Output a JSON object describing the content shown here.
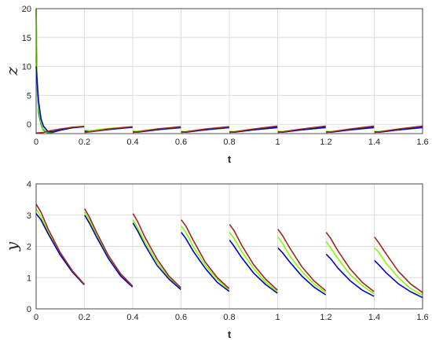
{
  "chart_data": [
    {
      "type": "line",
      "title": "",
      "xlabel": "t",
      "ylabel": "z",
      "xlim": [
        0,
        1.6
      ],
      "ylim": [
        -1.6,
        20
      ],
      "xticks": [
        "0",
        "0.2",
        "0.4",
        "0.6",
        "0.8",
        "1",
        "1.2",
        "1.4",
        "1.6"
      ],
      "yticks": [
        "0",
        "5",
        "10",
        "15",
        "20"
      ],
      "grid": true,
      "legend": "none",
      "series": [
        {
          "color": "#1a9e1a",
          "x": [
            0,
            0.005,
            0.01,
            0.02,
            0.03,
            0.05,
            0.07,
            0.1,
            0.15,
            0.199,
            0.201,
            0.22,
            0.3,
            0.399,
            0.401,
            0.42,
            0.5,
            0.599,
            0.601,
            0.62,
            0.7,
            0.799,
            0.801,
            0.82,
            0.9,
            0.999,
            1.001,
            1.02,
            1.1,
            1.199,
            1.201,
            1.22,
            1.3,
            1.399,
            1.401,
            1.42,
            1.5,
            1.6
          ],
          "y": [
            20,
            6,
            2,
            0,
            -1,
            -1.5,
            -1.4,
            -1.0,
            -0.6,
            -0.4,
            -1.1,
            -1.2,
            -0.8,
            -0.5,
            -1.2,
            -1.3,
            -0.9,
            -0.6,
            -1.3,
            -1.35,
            -0.95,
            -0.6,
            -1.3,
            -1.35,
            -0.95,
            -0.6,
            -1.3,
            -1.35,
            -0.95,
            -0.6,
            -1.3,
            -1.35,
            -0.95,
            -0.6,
            -1.3,
            -1.35,
            -0.95,
            -0.6
          ]
        },
        {
          "color": "#7fff00",
          "x": [
            0,
            0.005,
            0.01,
            0.02,
            0.03,
            0.05,
            0.07,
            0.1,
            0.15,
            0.199,
            0.201,
            0.22,
            0.3,
            0.399,
            0.401,
            0.42,
            0.5,
            0.599,
            0.601,
            0.62,
            0.7,
            0.799,
            0.801,
            0.82,
            0.9,
            0.999,
            1.001,
            1.02,
            1.1,
            1.199,
            1.201,
            1.22,
            1.3,
            1.399,
            1.401,
            1.42,
            1.5,
            1.6
          ],
          "y": [
            20,
            7,
            3,
            0.5,
            -0.8,
            -1.4,
            -1.3,
            -0.9,
            -0.5,
            -0.3,
            -1.0,
            -1.1,
            -0.7,
            -0.4,
            -1.1,
            -1.2,
            -0.8,
            -0.5,
            -1.2,
            -1.25,
            -0.85,
            -0.5,
            -1.2,
            -1.25,
            -0.85,
            -0.5,
            -1.2,
            -1.25,
            -0.85,
            -0.5,
            -1.2,
            -1.25,
            -0.85,
            -0.5,
            -1.2,
            -1.25,
            -0.85,
            -0.5
          ]
        },
        {
          "color": "#0000cc",
          "x": [
            0,
            0.005,
            0.01,
            0.02,
            0.03,
            0.05,
            0.07,
            0.1,
            0.15,
            0.199,
            0.201,
            0.22,
            0.3,
            0.399,
            0.401,
            0.42,
            0.5,
            0.599,
            0.601,
            0.62,
            0.7,
            0.799,
            0.801,
            0.82,
            0.9,
            0.999,
            1.001,
            1.02,
            1.1,
            1.199,
            1.201,
            1.22,
            1.3,
            1.399,
            1.401,
            1.42,
            1.5,
            1.6
          ],
          "y": [
            10,
            7,
            4,
            1,
            -0.3,
            -1.3,
            -1.3,
            -1.0,
            -0.6,
            -0.4,
            -1.2,
            -1.3,
            -0.9,
            -0.5,
            -1.3,
            -1.35,
            -0.95,
            -0.5,
            -1.3,
            -1.35,
            -0.95,
            -0.5,
            -1.3,
            -1.35,
            -0.95,
            -0.5,
            -1.3,
            -1.35,
            -0.95,
            -0.5,
            -1.3,
            -1.35,
            -0.95,
            -0.5,
            -1.3,
            -1.35,
            -0.95,
            -0.5
          ]
        },
        {
          "color": "#a0261e",
          "x": [
            0,
            0.03,
            0.06,
            0.1,
            0.15,
            0.199,
            0.201,
            0.22,
            0.3,
            0.399,
            0.401,
            0.42,
            0.5,
            0.599,
            0.601,
            0.62,
            0.7,
            0.799,
            0.801,
            0.82,
            0.9,
            0.999,
            1.001,
            1.02,
            1.1,
            1.199,
            1.201,
            1.22,
            1.3,
            1.399,
            1.401,
            1.42,
            1.5,
            1.6
          ],
          "y": [
            -1.5,
            -1.4,
            -1.1,
            -0.8,
            -0.5,
            -0.35,
            -1.4,
            -1.3,
            -0.8,
            -0.4,
            -1.4,
            -1.3,
            -0.8,
            -0.4,
            -1.4,
            -1.3,
            -0.8,
            -0.4,
            -1.4,
            -1.3,
            -0.8,
            -0.3,
            -1.4,
            -1.3,
            -0.8,
            -0.3,
            -1.4,
            -1.3,
            -0.8,
            -0.3,
            -1.4,
            -1.3,
            -0.8,
            -0.3
          ]
        }
      ]
    },
    {
      "type": "line",
      "title": "",
      "xlabel": "t",
      "ylabel": "y",
      "xlim": [
        0,
        1.6
      ],
      "ylim": [
        0,
        4
      ],
      "xticks": [
        "0",
        "0.2",
        "0.4",
        "0.6",
        "0.8",
        "1",
        "1.2",
        "1.4",
        "1.6"
      ],
      "yticks": [
        "0",
        "1",
        "2",
        "3",
        "4"
      ],
      "grid": true,
      "legend": "none",
      "series": [
        {
          "color": "#7fff00",
          "x": [
            0,
            0.02,
            0.05,
            0.1,
            0.15,
            0.199,
            0.201,
            0.22,
            0.25,
            0.3,
            0.35,
            0.399,
            0.401,
            0.42,
            0.45,
            0.5,
            0.55,
            0.599,
            0.601,
            0.62,
            0.65,
            0.7,
            0.75,
            0.799,
            0.801,
            0.82,
            0.85,
            0.9,
            0.95,
            0.999,
            1.001,
            1.02,
            1.05,
            1.1,
            1.15,
            1.199,
            1.201,
            1.22,
            1.25,
            1.3,
            1.35,
            1.399,
            1.401,
            1.42,
            1.45,
            1.5,
            1.55,
            1.6
          ],
          "y": [
            3.2,
            2.95,
            2.45,
            1.75,
            1.2,
            0.78,
            3.1,
            2.85,
            2.35,
            1.65,
            1.1,
            0.72,
            2.85,
            2.6,
            2.15,
            1.5,
            1.0,
            0.65,
            2.65,
            2.45,
            2.0,
            1.4,
            0.95,
            0.6,
            2.45,
            2.25,
            1.85,
            1.3,
            0.85,
            0.55,
            2.3,
            2.1,
            1.7,
            1.2,
            0.8,
            0.52,
            2.15,
            1.95,
            1.6,
            1.1,
            0.75,
            0.48,
            1.95,
            1.8,
            1.45,
            1.0,
            0.65,
            0.44
          ]
        },
        {
          "color": "#0000cc",
          "x": [
            0,
            0.02,
            0.05,
            0.1,
            0.15,
            0.199,
            0.201,
            0.22,
            0.25,
            0.3,
            0.35,
            0.399,
            0.401,
            0.42,
            0.45,
            0.5,
            0.55,
            0.599,
            0.601,
            0.62,
            0.65,
            0.7,
            0.75,
            0.799,
            0.801,
            0.82,
            0.85,
            0.9,
            0.95,
            0.999,
            1.001,
            1.02,
            1.05,
            1.1,
            1.15,
            1.199,
            1.201,
            1.22,
            1.25,
            1.3,
            1.35,
            1.399,
            1.401,
            1.42,
            1.45,
            1.5,
            1.55,
            1.6
          ],
          "y": [
            3.05,
            2.85,
            2.4,
            1.72,
            1.18,
            0.77,
            3.0,
            2.75,
            2.3,
            1.6,
            1.05,
            0.7,
            2.75,
            2.5,
            2.05,
            1.4,
            0.95,
            0.62,
            2.45,
            2.25,
            1.85,
            1.3,
            0.85,
            0.56,
            2.2,
            2.0,
            1.65,
            1.15,
            0.78,
            0.5,
            1.95,
            1.8,
            1.5,
            1.05,
            0.7,
            0.45,
            1.75,
            1.6,
            1.3,
            0.9,
            0.6,
            0.4,
            1.55,
            1.4,
            1.15,
            0.8,
            0.55,
            0.36
          ]
        },
        {
          "color": "#a0261e",
          "x": [
            0,
            0.02,
            0.05,
            0.1,
            0.15,
            0.199,
            0.201,
            0.22,
            0.25,
            0.3,
            0.35,
            0.399,
            0.401,
            0.42,
            0.45,
            0.5,
            0.55,
            0.599,
            0.601,
            0.62,
            0.65,
            0.7,
            0.75,
            0.799,
            0.801,
            0.82,
            0.85,
            0.9,
            0.95,
            0.999,
            1.001,
            1.02,
            1.05,
            1.1,
            1.15,
            1.199,
            1.201,
            1.22,
            1.25,
            1.3,
            1.35,
            1.399,
            1.401,
            1.42,
            1.45,
            1.5,
            1.55,
            1.6
          ],
          "y": [
            3.35,
            3.1,
            2.55,
            1.8,
            1.22,
            0.79,
            3.2,
            2.95,
            2.45,
            1.7,
            1.12,
            0.73,
            3.05,
            2.8,
            2.3,
            1.6,
            1.05,
            0.68,
            2.85,
            2.65,
            2.2,
            1.5,
            1.0,
            0.65,
            2.7,
            2.5,
            2.05,
            1.42,
            0.95,
            0.6,
            2.55,
            2.35,
            1.95,
            1.35,
            0.9,
            0.58,
            2.45,
            2.25,
            1.85,
            1.28,
            0.85,
            0.55,
            2.3,
            2.1,
            1.75,
            1.2,
            0.8,
            0.52
          ]
        }
      ]
    }
  ]
}
